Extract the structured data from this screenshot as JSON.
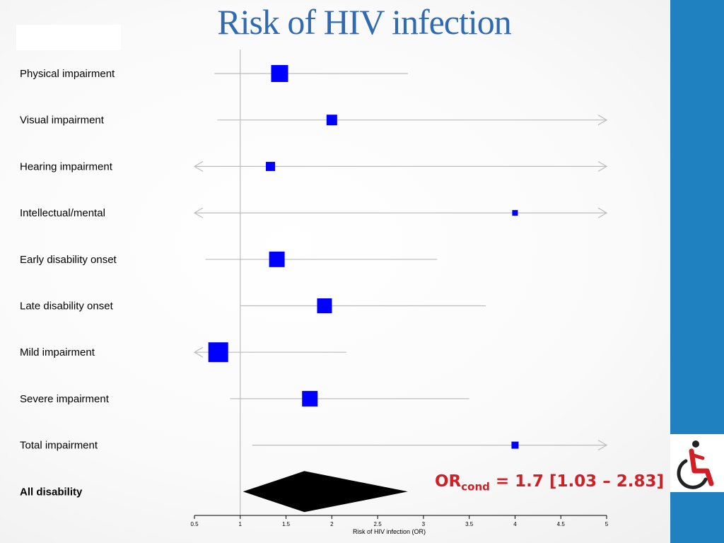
{
  "slide": {
    "title": "Risk of HIV infection",
    "summary": {
      "prefix": "OR",
      "subscript": "cond",
      "suffix": " = 1.7 [1.03 – 2.83]",
      "color": "#d01f25"
    },
    "sidebar_color": "#1f81bf",
    "title_color": "#2f6ab3",
    "logo_icon": "wheelchair-icon"
  },
  "chart_data": {
    "type": "forest",
    "xlabel": "Risk of HIV infection (OR)",
    "xlim": [
      0.5,
      5
    ],
    "xticks": [
      0.5,
      1,
      1.5,
      2,
      2.5,
      3,
      3.5,
      4,
      4.5,
      5
    ],
    "xtick_labels": [
      "0.5",
      "1",
      "1.5",
      "2",
      "2.5",
      "3",
      "3.5",
      "4",
      "4.5",
      "5"
    ],
    "reference_line": 1,
    "marker_color": "#0000ff",
    "rows": [
      {
        "label": "Physical impairment",
        "or": 1.43,
        "lower": 0.72,
        "upper": 2.83,
        "weight": 24
      },
      {
        "label": "Visual impairment",
        "or": 2.0,
        "lower": 0.75,
        "upper": 5.0,
        "arrow_right": true,
        "weight": 15
      },
      {
        "label": "Hearing impairment",
        "or": 1.33,
        "lower": 0.5,
        "upper": 5.0,
        "arrow_left": true,
        "arrow_right": true,
        "weight": 13
      },
      {
        "label": "Intellectual/mental",
        "or": 4.0,
        "lower": 0.5,
        "upper": 5.0,
        "arrow_left": true,
        "arrow_right": true,
        "weight": 8
      },
      {
        "label": "Early disability onset",
        "or": 1.4,
        "lower": 0.62,
        "upper": 3.15,
        "weight": 22
      },
      {
        "label": "Late disability onset",
        "or": 1.92,
        "lower": 1.0,
        "upper": 3.68,
        "weight": 21
      },
      {
        "label": "Mild impairment",
        "or": 0.76,
        "lower": 0.5,
        "upper": 2.16,
        "arrow_left": true,
        "weight": 28
      },
      {
        "label": "Severe impairment",
        "or": 1.76,
        "lower": 0.89,
        "upper": 3.5,
        "weight": 22
      },
      {
        "label": "Total impairment",
        "or": 4.0,
        "lower": 1.13,
        "upper": 5.0,
        "arrow_right": true,
        "weight": 10
      }
    ],
    "summary": {
      "label": "All disability",
      "or": 1.7,
      "lower": 1.03,
      "upper": 2.83
    }
  }
}
